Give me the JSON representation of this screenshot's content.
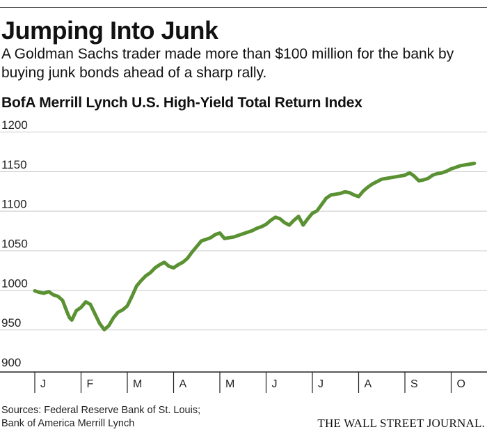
{
  "header": {
    "headline": "Jumping Into Junk",
    "subhead": "A Goldman Sachs trader made more than $100 million for the bank by buying junk bonds ahead of a sharp rally."
  },
  "footer": {
    "source_line1": "Sources: Federal Reserve Bank of St. Louis;",
    "source_line2": "Bank of America Merrill Lynch",
    "logo": "THE WALL STREET JOURNAL."
  },
  "colors": {
    "line": "#5a9132",
    "grid": "#c8c8c8",
    "axis": "#222222"
  },
  "chart_data": {
    "type": "line",
    "title": "BofA Merrill Lynch U.S. High-Yield Total Return Index",
    "xlabel": "",
    "ylabel": "",
    "ylim": [
      900,
      1200
    ],
    "yticks": [
      1200,
      1150,
      1100,
      1050,
      1000,
      950,
      900
    ],
    "grid": true,
    "legend": "none",
    "months": [
      "J",
      "F",
      "M",
      "A",
      "M",
      "J",
      "J",
      "A",
      "S",
      "O"
    ],
    "series": [
      {
        "x": [
          0.0,
          0.1,
          0.2,
          0.3,
          0.4,
          0.5,
          0.6,
          0.7,
          0.75,
          0.8,
          0.9,
          1.0,
          1.1,
          1.2,
          1.3,
          1.4,
          1.5,
          1.6,
          1.7,
          1.8,
          1.9,
          2.0,
          2.1,
          2.2,
          2.3,
          2.4,
          2.5,
          2.6,
          2.7,
          2.8,
          2.9,
          3.0,
          3.1,
          3.2,
          3.3,
          3.4,
          3.5,
          3.6,
          3.7,
          3.8,
          3.9,
          4.0,
          4.1,
          4.2,
          4.3,
          4.4,
          4.5,
          4.6,
          4.7,
          4.8,
          4.9,
          5.0,
          5.1,
          5.2,
          5.3,
          5.4,
          5.5,
          5.6,
          5.7,
          5.8,
          5.9,
          6.0,
          6.1,
          6.2,
          6.3,
          6.4,
          6.5,
          6.6,
          6.7,
          6.8,
          6.9,
          7.0,
          7.1,
          7.2,
          7.3,
          7.4,
          7.5,
          7.6,
          7.7,
          7.8,
          7.9,
          8.0,
          8.1,
          8.2,
          8.3,
          8.4,
          8.5,
          8.6,
          8.7,
          8.8,
          8.9,
          9.0,
          9.1,
          9.2,
          9.3,
          9.4,
          9.5
        ],
        "values": [
          999,
          997,
          996,
          998,
          994,
          992,
          987,
          972,
          965,
          962,
          974,
          978,
          985,
          982,
          970,
          958,
          950,
          955,
          965,
          972,
          975,
          980,
          992,
          1005,
          1012,
          1018,
          1022,
          1028,
          1032,
          1035,
          1030,
          1028,
          1032,
          1035,
          1040,
          1048,
          1055,
          1062,
          1064,
          1066,
          1070,
          1072,
          1065,
          1066,
          1067,
          1069,
          1071,
          1073,
          1075,
          1078,
          1080,
          1083,
          1088,
          1092,
          1090,
          1085,
          1082,
          1088,
          1093,
          1082,
          1090,
          1097,
          1100,
          1108,
          1116,
          1120,
          1121,
          1122,
          1124,
          1123,
          1120,
          1118,
          1125,
          1130,
          1134,
          1137,
          1140,
          1141,
          1142,
          1143,
          1144,
          1145,
          1148,
          1144,
          1138,
          1139,
          1141,
          1145,
          1147,
          1148,
          1150,
          1153,
          1155,
          1157,
          1158,
          1159,
          1160
        ]
      }
    ]
  }
}
